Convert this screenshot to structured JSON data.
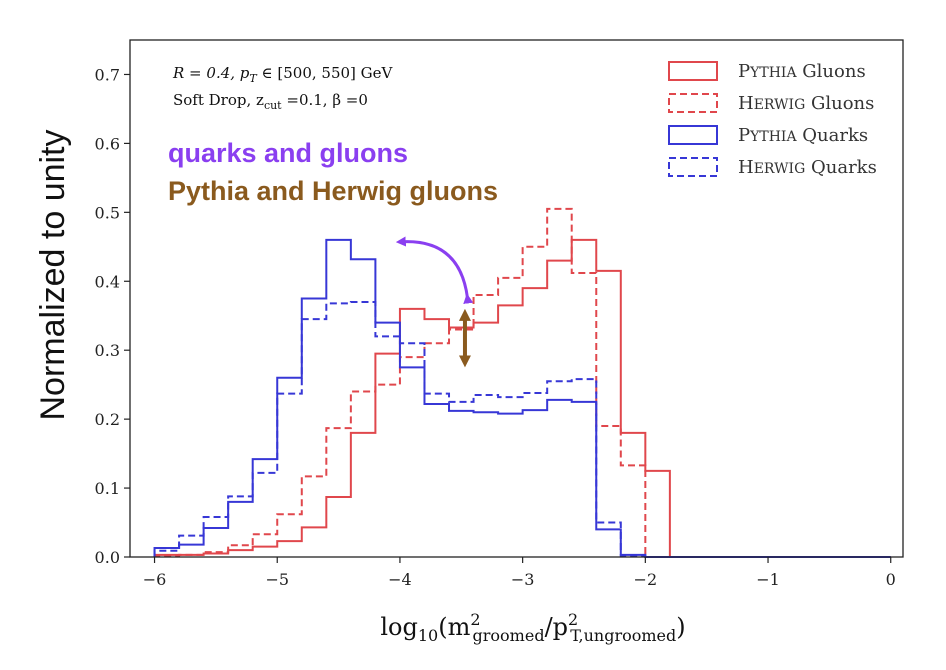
{
  "chart_data": {
    "type": "line",
    "style": "step-histogram",
    "xlabel_parts": {
      "pre": "log",
      "sub1": "10",
      "mid1": "(m",
      "sub2": "groomed",
      "sup2": "2",
      "mid2": "/p",
      "sub3": "T,ungroomed",
      "sup3": "2",
      "post": ")"
    },
    "ylabel": "Normalized to unity",
    "xlim": [
      -6.2,
      0.1
    ],
    "ylim": [
      0.0,
      0.75
    ],
    "x_ticks": [
      -6,
      -5,
      -4,
      -3,
      -2,
      -1,
      0
    ],
    "x_tick_labels": [
      "−6",
      "−5",
      "−4",
      "−3",
      "−2",
      "−1",
      "0"
    ],
    "y_ticks": [
      0.0,
      0.1,
      0.2,
      0.3,
      0.4,
      0.5,
      0.6,
      0.7
    ],
    "y_tick_labels": [
      "0.0",
      "0.1",
      "0.2",
      "0.3",
      "0.4",
      "0.5",
      "0.6",
      "0.7"
    ],
    "grid": false,
    "legend_position": "top-right",
    "bin_edges": [
      -6.0,
      -5.8,
      -5.6,
      -5.4,
      -5.2,
      -5.0,
      -4.8,
      -4.6,
      -4.4,
      -4.2,
      -4.0,
      -3.8,
      -3.6,
      -3.4,
      -3.2,
      -3.0,
      -2.8,
      -2.6,
      -2.4,
      -2.2,
      -2.0,
      -1.8,
      -1.6,
      -1.4,
      -1.2,
      -1.0,
      -0.8,
      -0.6,
      -0.4,
      -0.2,
      0.0
    ],
    "series": [
      {
        "name": "Gluons",
        "name_prefix_cap": "P",
        "name_prefix_sc": "YTHIA",
        "color": "#e0474c",
        "dash": "solid",
        "values": [
          0.003,
          0.003,
          0.005,
          0.01,
          0.015,
          0.023,
          0.043,
          0.087,
          0.18,
          0.295,
          0.36,
          0.345,
          0.333,
          0.34,
          0.365,
          0.39,
          0.43,
          0.46,
          0.415,
          0.18,
          0.125,
          0.0,
          0.0,
          0.0,
          0.0,
          0.0,
          0.0,
          0.0,
          0.0,
          0.0
        ]
      },
      {
        "name": "Gluons",
        "name_prefix_cap": "H",
        "name_prefix_sc": "ERWIG",
        "color": "#e0474c",
        "dash": "dashed",
        "values": [
          0.002,
          0.003,
          0.007,
          0.017,
          0.033,
          0.062,
          0.117,
          0.187,
          0.24,
          0.25,
          0.29,
          0.31,
          0.33,
          0.38,
          0.405,
          0.45,
          0.505,
          0.412,
          0.19,
          0.133,
          0.0,
          0.0,
          0.0,
          0.0,
          0.0,
          0.0,
          0.0,
          0.0,
          0.0,
          0.0
        ]
      },
      {
        "name": "Quarks",
        "name_prefix_cap": "P",
        "name_prefix_sc": "YTHIA",
        "color": "#3737d6",
        "dash": "solid",
        "values": [
          0.013,
          0.018,
          0.042,
          0.08,
          0.142,
          0.26,
          0.375,
          0.46,
          0.432,
          0.34,
          0.275,
          0.222,
          0.212,
          0.21,
          0.208,
          0.213,
          0.228,
          0.225,
          0.04,
          0.003,
          0.0,
          0.0,
          0.0,
          0.0,
          0.0,
          0.0,
          0.0,
          0.0,
          0.0,
          0.0
        ]
      },
      {
        "name": "Quarks",
        "name_prefix_cap": "H",
        "name_prefix_sc": "ERWIG",
        "color": "#3737d6",
        "dash": "dashed",
        "values": [
          0.009,
          0.031,
          0.058,
          0.088,
          0.122,
          0.237,
          0.345,
          0.368,
          0.37,
          0.32,
          0.31,
          0.237,
          0.225,
          0.235,
          0.232,
          0.238,
          0.255,
          0.258,
          0.05,
          0.002,
          0.0,
          0.0,
          0.0,
          0.0,
          0.0,
          0.0,
          0.0,
          0.0,
          0.0,
          0.0
        ]
      }
    ],
    "annotation_params": {
      "line1": {
        "prefix": "R = 0.4, p",
        "sub": "T",
        "mid": " ∈ [500, 550] GeV"
      },
      "line2": {
        "prefix": "Soft Drop, z",
        "sub": "cut",
        "mid": " =0.1, β =0"
      }
    },
    "annotation_labels": [
      {
        "text": "quarks and gluons",
        "color": "#8a3ff0"
      },
      {
        "text": "Pythia and Herwig gluons",
        "color": "#8a5a1e"
      }
    ],
    "arrows": [
      {
        "kind": "curved",
        "color": "#8a3ff0",
        "from": [
          -3.45,
          0.365
        ],
        "to": [
          -4.05,
          0.46
        ]
      },
      {
        "kind": "double-vertical",
        "color": "#8a5a1e",
        "x": -3.47,
        "y_from": 0.275,
        "y_to": 0.36
      }
    ]
  }
}
